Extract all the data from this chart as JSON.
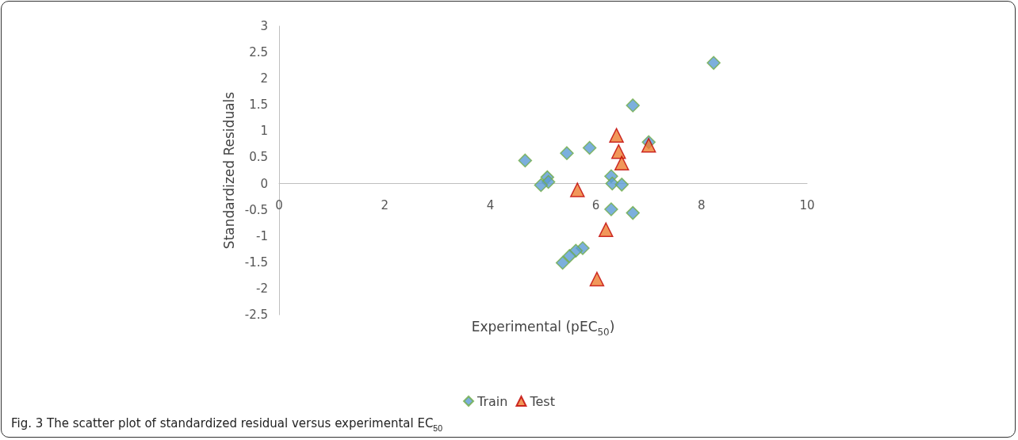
{
  "chart_data": {
    "type": "scatter",
    "xlabel": "Experimental (pEC$_{50}$)",
    "ylabel": "Standardized Residuals",
    "annotations": [
      "Fig. 3 The scatter plot of standardized residual versus experimental EC$_{50}$"
    ],
    "xlim": [
      0,
      10
    ],
    "xticks": [
      0,
      2,
      4,
      6,
      8,
      10
    ],
    "ylim": [
      -2.5,
      3
    ],
    "yticks": [
      -2.5,
      -2,
      -1.5,
      -1,
      -0.5,
      0,
      0.5,
      1,
      1.5,
      2,
      2.5,
      3
    ],
    "grid": false,
    "legend": "bottom",
    "series": [
      {
        "name": "Train",
        "color": "#5b9bd5",
        "marker": "diamond",
        "x": [
          8.23,
          6.7,
          7.0,
          5.88,
          5.45,
          4.66,
          5.08,
          5.1,
          4.96,
          6.29,
          6.31,
          6.49,
          6.29,
          6.7,
          5.75,
          5.62,
          5.5,
          5.37
        ],
        "values": [
          2.3,
          1.49,
          0.79,
          0.68,
          0.58,
          0.44,
          0.12,
          0.03,
          -0.03,
          0.14,
          0.0,
          -0.02,
          -0.49,
          -0.56,
          -1.23,
          -1.28,
          -1.38,
          -1.51
        ]
      },
      {
        "name": "Test",
        "color": "#ed7d31",
        "marker": "triangle",
        "x": [
          6.39,
          6.43,
          6.49,
          7.0,
          5.65,
          6.19,
          6.02
        ],
        "values": [
          0.92,
          0.61,
          0.39,
          0.73,
          -0.12,
          -0.88,
          -1.82
        ]
      }
    ]
  }
}
